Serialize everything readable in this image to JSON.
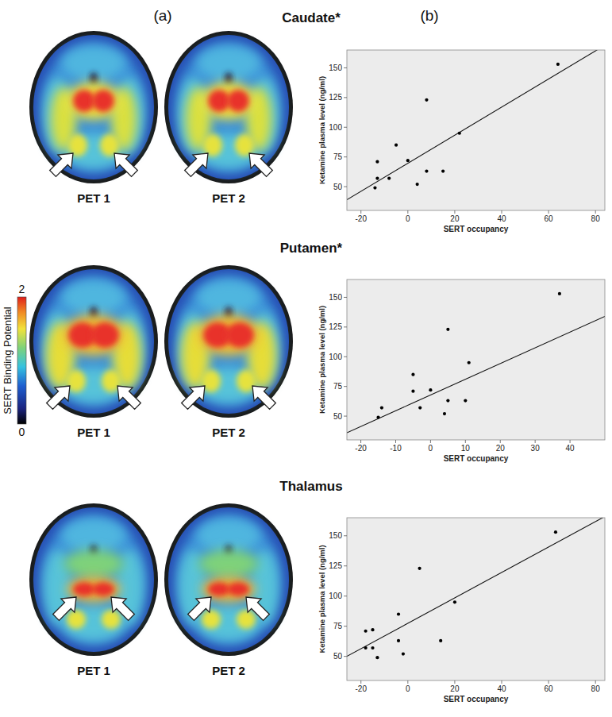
{
  "panel_labels": [
    "(a)",
    "(b)"
  ],
  "image_labels": [
    "PET 1",
    "PET 2"
  ],
  "colorbar": {
    "label": "SERT Binding Potential",
    "range": [
      0,
      2
    ],
    "ticks": [
      0,
      2
    ]
  },
  "chart_data": [
    {
      "type": "scatter",
      "title": "Caudate*",
      "x_label": "SERT occupancy",
      "y_label": "Ketamine plasma level (ng/ml)",
      "x": [
        64,
        8,
        22,
        -5,
        -13,
        0,
        -13,
        -8,
        8,
        15,
        4,
        -14
      ],
      "values": [
        153,
        123,
        95,
        85,
        71,
        72,
        57,
        57,
        63,
        63,
        52,
        49
      ],
      "fit_line": {
        "x": [
          -26,
          84
        ],
        "y": [
          39,
          169
        ]
      },
      "xlim": [
        -26,
        84
      ],
      "xticks": [
        -20,
        0,
        20,
        40,
        60,
        80
      ],
      "ylim": [
        30,
        165
      ],
      "yticks": [
        50,
        75,
        100,
        125,
        150
      ],
      "grid": false
    },
    {
      "type": "scatter",
      "title": "Putamen*",
      "x_label": "SERT occupancy",
      "y_label": "Ketamine plasma level (ng/ml)",
      "x": [
        37,
        5,
        11,
        -5,
        -5,
        0,
        -14,
        -3,
        5,
        10,
        4,
        -15
      ],
      "values": [
        153,
        123,
        95,
        85,
        71,
        72,
        57,
        57,
        63,
        63,
        52,
        49
      ],
      "fit_line": {
        "x": [
          -24,
          50
        ],
        "y": [
          36,
          134
        ]
      },
      "xlim": [
        -24,
        50
      ],
      "xticks": [
        -20,
        -10,
        0,
        10,
        20,
        30,
        40
      ],
      "ylim": [
        30,
        165
      ],
      "yticks": [
        50,
        75,
        100,
        125,
        150
      ],
      "grid": false
    },
    {
      "type": "scatter",
      "title": "Thalamus",
      "x_label": "SERT occupancy",
      "y_label": "Ketamine plasma level (ng/ml)",
      "x": [
        63,
        5,
        20,
        -4,
        -18,
        -15,
        -18,
        -15,
        -4,
        14,
        -2,
        -13
      ],
      "values": [
        153,
        123,
        95,
        85,
        71,
        72,
        57,
        57,
        63,
        63,
        52,
        49
      ],
      "fit_line": {
        "x": [
          -26,
          84
        ],
        "y": [
          50,
          166
        ]
      },
      "xlim": [
        -26,
        84
      ],
      "xticks": [
        -20,
        0,
        20,
        40,
        60,
        80
      ],
      "ylim": [
        30,
        165
      ],
      "yticks": [
        50,
        75,
        100,
        125,
        150
      ],
      "grid": false
    }
  ]
}
